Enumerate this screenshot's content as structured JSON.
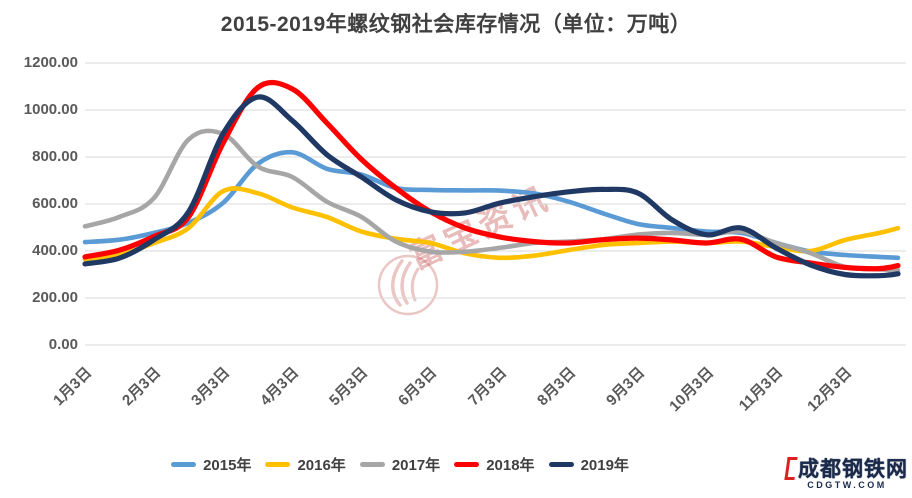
{
  "title": "2015-2019年螺纹钢社会库存情况（单位：万吨）",
  "watermark": {
    "text": "富宝资讯",
    "logo": "fubao-flame-logo"
  },
  "brand": {
    "name": "成都钢铁网",
    "domain": "CDGTW.COM"
  },
  "chart_data": {
    "type": "line",
    "title": "2015-2019年螺纹钢社会库存情况（单位：万吨）",
    "unit": "万吨",
    "ylim": [
      0,
      1200
    ],
    "y_ticks": [
      0,
      200,
      400,
      600,
      800,
      1000,
      1200
    ],
    "y_tick_labels": [
      "0.00",
      "200.00",
      "400.00",
      "600.00",
      "800.00",
      "1000.00",
      "1200.00"
    ],
    "x_tick_labels": [
      "1月3日",
      "2月3日",
      "3月3日",
      "4月3日",
      "5月3日",
      "6月3日",
      "7月3日",
      "8月3日",
      "9月3日",
      "10月3日",
      "11月3日",
      "12月3日"
    ],
    "x_sampling_note": "values sampled twice per month from 1月3日 to year end (25 points per series, estimated from plot)",
    "grid": "horizontal only",
    "legend_position": "bottom",
    "series": [
      {
        "name": "2015年",
        "color": "#5B9BD5",
        "values": [
          438,
          448,
          477,
          520,
          605,
          770,
          820,
          750,
          725,
          668,
          660,
          658,
          657,
          645,
          610,
          560,
          515,
          498,
          483,
          477,
          435,
          398,
          383,
          375,
          371
        ]
      },
      {
        "name": "2016年",
        "color": "#FFC000",
        "values": [
          365,
          383,
          434,
          498,
          655,
          646,
          585,
          545,
          483,
          452,
          434,
          390,
          371,
          380,
          404,
          426,
          434,
          440,
          434,
          440,
          417,
          400,
          447,
          477,
          497
        ]
      },
      {
        "name": "2017年",
        "color": "#A6A6A6",
        "values": [
          505,
          545,
          626,
          875,
          898,
          760,
          715,
          610,
          545,
          440,
          397,
          397,
          413,
          434,
          440,
          450,
          470,
          477,
          469,
          483,
          434,
          391,
          332,
          322,
          318
        ]
      },
      {
        "name": "2018年",
        "color": "#FE0000",
        "values": [
          375,
          404,
          462,
          545,
          860,
          1095,
          1090,
          945,
          790,
          668,
          567,
          498,
          460,
          440,
          434,
          448,
          455,
          447,
          434,
          450,
          375,
          349,
          330,
          325,
          338
        ]
      },
      {
        "name": "2019年",
        "color": "#1F3864",
        "values": [
          345,
          370,
          448,
          567,
          900,
          1055,
          955,
          810,
          715,
          618,
          567,
          562,
          604,
          631,
          652,
          662,
          647,
          532,
          469,
          498,
          413,
          341,
          300,
          295,
          303
        ]
      }
    ]
  }
}
